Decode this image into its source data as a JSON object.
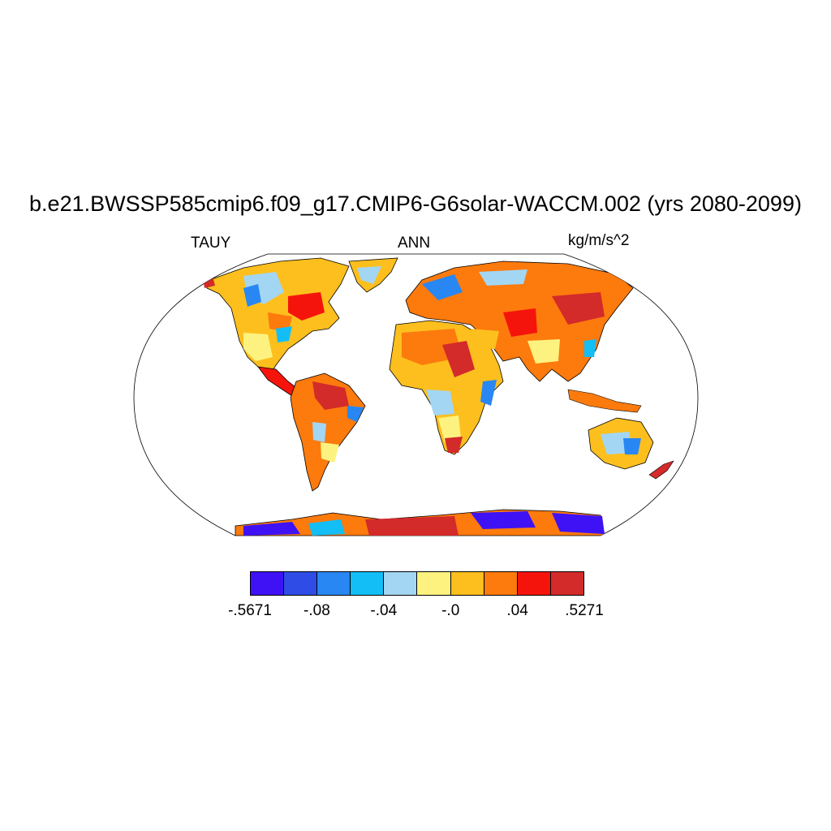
{
  "title": "b.e21.BWSSP585cmip6.f09_g17.CMIP6-G6solar-WACCM.002 (yrs 2080-2099)",
  "left_string": "TAUY",
  "center_string": "ANN",
  "right_string": "kg/m/s^2",
  "map": {
    "projection": "robinson",
    "fill_style": "land-only raster"
  },
  "colorbar": {
    "colors": [
      "#3f12f5",
      "#2f4de6",
      "#2887f2",
      "#12bef5",
      "#a3d6f2",
      "#fdf27f",
      "#fdbf1e",
      "#fd7a0d",
      "#f5140c",
      "#d32a2a"
    ],
    "tick_labels": [
      {
        "label": "-.5671",
        "boundary": 0
      },
      {
        "label": "-.08",
        "boundary": 2
      },
      {
        "label": "-.04",
        "boundary": 4
      },
      {
        "label": "-.0",
        "boundary": 6
      },
      {
        "label": ".04",
        "boundary": 8
      },
      {
        "label": ".5271",
        "boundary": 10
      }
    ]
  }
}
